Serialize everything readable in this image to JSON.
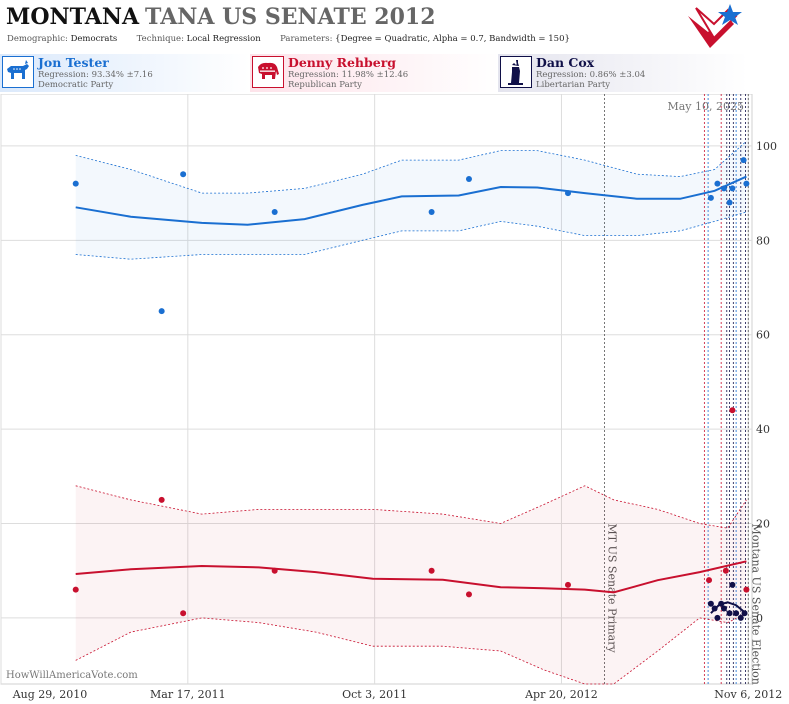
{
  "header": {
    "title_state": "MONTANA",
    "title_race": "TANA US SENATE 2012",
    "demographic_label": "Demographic:",
    "demographic_value": "Democrats",
    "technique_label": "Technique:",
    "technique_value": "Local Regression",
    "parameters_label": "Parameters:",
    "parameters_value": "{Degree = Quadratic, Alpha = 0.7, Bandwidth = 150}"
  },
  "candidates": [
    {
      "name": "Jon Tester",
      "regression": "Regression: 93.34% ±7.16",
      "party": "Democratic Party",
      "icon": "donkey-icon",
      "color": "#1a6fd1"
    },
    {
      "name": "Denny Rehberg",
      "regression": "Regression: 11.98% ±12.46",
      "party": "Republican Party",
      "icon": "elephant-icon",
      "color": "#c8102e"
    },
    {
      "name": "Dan Cox",
      "regression": "Regression: 0.86% ±3.04",
      "party": "Libertarian Party",
      "icon": "liberty-icon",
      "color": "#101048"
    }
  ],
  "watermark": "HowWillAmericaVote.com",
  "chart_data": {
    "type": "scatter",
    "date_stamp": "May 10, 2025",
    "x_range": [
      "2010-08-29",
      "2012-11-10"
    ],
    "ylim": [
      -14,
      111
    ],
    "y_ticks": [
      0,
      20,
      40,
      60,
      80,
      100
    ],
    "x_ticks": [
      {
        "date": "2010-08-29",
        "label": "Aug 29, 2010"
      },
      {
        "date": "2011-03-17",
        "label": "Mar 17, 2011"
      },
      {
        "date": "2011-10-03",
        "label": "Oct 3, 2011"
      },
      {
        "date": "2012-04-20",
        "label": "Apr 20, 2012"
      },
      {
        "date": "2012-11-06",
        "label": "Nov 6, 2012"
      }
    ],
    "events": [
      {
        "date": "2012-06-05",
        "label": "MT US Senate Primary"
      },
      {
        "date": "2012-11-06",
        "label": "Montana US Senate Election"
      }
    ],
    "poll_dates": [
      "2012-09-20",
      "2012-09-24",
      "2012-10-08",
      "2012-10-14",
      "2012-10-17",
      "2012-10-21",
      "2012-10-24",
      "2012-10-29",
      "2012-11-03"
    ],
    "series": [
      {
        "name": "Jon Tester",
        "color": "#1a6fd1",
        "points": [
          [
            "2010-11-17",
            92
          ],
          [
            "2011-02-17",
            65
          ],
          [
            "2011-03-12",
            94
          ],
          [
            "2011-06-18",
            86
          ],
          [
            "2011-12-03",
            86
          ],
          [
            "2012-01-12",
            93
          ],
          [
            "2012-04-27",
            90
          ],
          [
            "2012-09-27",
            89
          ],
          [
            "2012-10-04",
            92
          ],
          [
            "2012-10-11",
            91
          ],
          [
            "2012-10-17",
            88
          ],
          [
            "2012-10-20",
            91
          ],
          [
            "2012-11-01",
            97
          ],
          [
            "2012-11-04",
            92
          ]
        ],
        "trend": [
          [
            "2010-11-17",
            87
          ],
          [
            "2011-01-15",
            85
          ],
          [
            "2011-04-01",
            83.7
          ],
          [
            "2011-05-20",
            83.3
          ],
          [
            "2011-07-20",
            84.5
          ],
          [
            "2011-09-20",
            87.5
          ],
          [
            "2011-11-01",
            89.3
          ],
          [
            "2012-01-01",
            89.5
          ],
          [
            "2012-02-15",
            91.3
          ],
          [
            "2012-03-25",
            91.2
          ],
          [
            "2012-05-15",
            90
          ],
          [
            "2012-07-10",
            88.8
          ],
          [
            "2012-08-25",
            88.8
          ],
          [
            "2012-10-01",
            90.5
          ],
          [
            "2012-11-04",
            93.5
          ]
        ],
        "band_upper": [
          [
            "2010-11-17",
            98
          ],
          [
            "2011-01-15",
            95
          ],
          [
            "2011-04-01",
            90
          ],
          [
            "2011-05-20",
            90
          ],
          [
            "2011-07-20",
            91
          ],
          [
            "2011-09-20",
            94
          ],
          [
            "2011-11-01",
            97
          ],
          [
            "2012-01-01",
            97
          ],
          [
            "2012-02-15",
            99
          ],
          [
            "2012-03-25",
            99
          ],
          [
            "2012-05-15",
            97
          ],
          [
            "2012-07-10",
            94
          ],
          [
            "2012-08-25",
            93.5
          ],
          [
            "2012-10-01",
            95
          ],
          [
            "2012-11-04",
            101
          ]
        ],
        "band_lower": [
          [
            "2010-11-17",
            77
          ],
          [
            "2011-01-15",
            76
          ],
          [
            "2011-04-01",
            77
          ],
          [
            "2011-05-20",
            77
          ],
          [
            "2011-07-20",
            77
          ],
          [
            "2011-09-20",
            80
          ],
          [
            "2011-11-01",
            82
          ],
          [
            "2012-01-01",
            82
          ],
          [
            "2012-02-15",
            84
          ],
          [
            "2012-03-25",
            83
          ],
          [
            "2012-05-15",
            81
          ],
          [
            "2012-07-10",
            81
          ],
          [
            "2012-08-25",
            82
          ],
          [
            "2012-10-01",
            84
          ],
          [
            "2012-11-04",
            86
          ]
        ]
      },
      {
        "name": "Denny Rehberg",
        "color": "#c8102e",
        "points": [
          [
            "2010-11-17",
            6
          ],
          [
            "2011-02-17",
            25
          ],
          [
            "2011-03-12",
            1
          ],
          [
            "2011-06-18",
            10
          ],
          [
            "2011-12-03",
            10
          ],
          [
            "2012-01-12",
            5
          ],
          [
            "2012-04-27",
            7
          ],
          [
            "2012-09-25",
            8
          ],
          [
            "2012-10-13",
            10
          ],
          [
            "2012-10-20",
            44
          ],
          [
            "2012-11-04",
            6
          ]
        ],
        "trend": [
          [
            "2010-11-17",
            9.3
          ],
          [
            "2011-01-15",
            10.3
          ],
          [
            "2011-04-01",
            11
          ],
          [
            "2011-06-01",
            10.7
          ],
          [
            "2011-08-01",
            9.7
          ],
          [
            "2011-10-01",
            8.3
          ],
          [
            "2011-12-15",
            8.1
          ],
          [
            "2012-02-15",
            6.5
          ],
          [
            "2012-04-01",
            6.3
          ],
          [
            "2012-05-15",
            6
          ],
          [
            "2012-06-15",
            5.4
          ],
          [
            "2012-08-01",
            8
          ],
          [
            "2012-09-15",
            9.7
          ],
          [
            "2012-11-04",
            12
          ]
        ],
        "band_upper": [
          [
            "2010-11-17",
            28
          ],
          [
            "2011-01-15",
            25
          ],
          [
            "2011-04-01",
            22
          ],
          [
            "2011-06-01",
            23
          ],
          [
            "2011-08-01",
            23
          ],
          [
            "2011-10-01",
            23
          ],
          [
            "2011-12-15",
            22
          ],
          [
            "2012-02-15",
            20
          ],
          [
            "2012-04-01",
            24
          ],
          [
            "2012-05-15",
            28
          ],
          [
            "2012-06-15",
            25
          ],
          [
            "2012-08-01",
            23
          ],
          [
            "2012-09-15",
            20
          ],
          [
            "2012-10-15",
            19
          ],
          [
            "2012-11-04",
            25
          ]
        ],
        "band_lower": [
          [
            "2010-11-17",
            -9
          ],
          [
            "2011-01-15",
            -3
          ],
          [
            "2011-04-01",
            0
          ],
          [
            "2011-06-01",
            -1
          ],
          [
            "2011-08-01",
            -3
          ],
          [
            "2011-10-01",
            -6
          ],
          [
            "2011-12-15",
            -6
          ],
          [
            "2012-02-15",
            -7
          ],
          [
            "2012-04-01",
            -11
          ],
          [
            "2012-05-15",
            -14
          ],
          [
            "2012-06-15",
            -14
          ],
          [
            "2012-08-01",
            -7
          ],
          [
            "2012-09-15",
            0
          ],
          [
            "2012-10-15",
            -1
          ],
          [
            "2012-11-04",
            1
          ]
        ]
      },
      {
        "name": "Dan Cox",
        "color": "#101048",
        "points": [
          [
            "2012-09-27",
            3
          ],
          [
            "2012-10-01",
            2
          ],
          [
            "2012-10-04",
            0
          ],
          [
            "2012-10-08",
            3
          ],
          [
            "2012-10-11",
            2
          ],
          [
            "2012-10-17",
            1
          ],
          [
            "2012-10-20",
            7
          ],
          [
            "2012-10-24",
            1
          ],
          [
            "2012-10-29",
            0
          ],
          [
            "2012-11-02",
            1
          ]
        ],
        "trend": [
          [
            "2012-09-27",
            1
          ],
          [
            "2012-10-06",
            2.8
          ],
          [
            "2012-10-15",
            3.3
          ],
          [
            "2012-10-24",
            2.7
          ],
          [
            "2012-11-04",
            0.9
          ]
        ]
      }
    ]
  }
}
